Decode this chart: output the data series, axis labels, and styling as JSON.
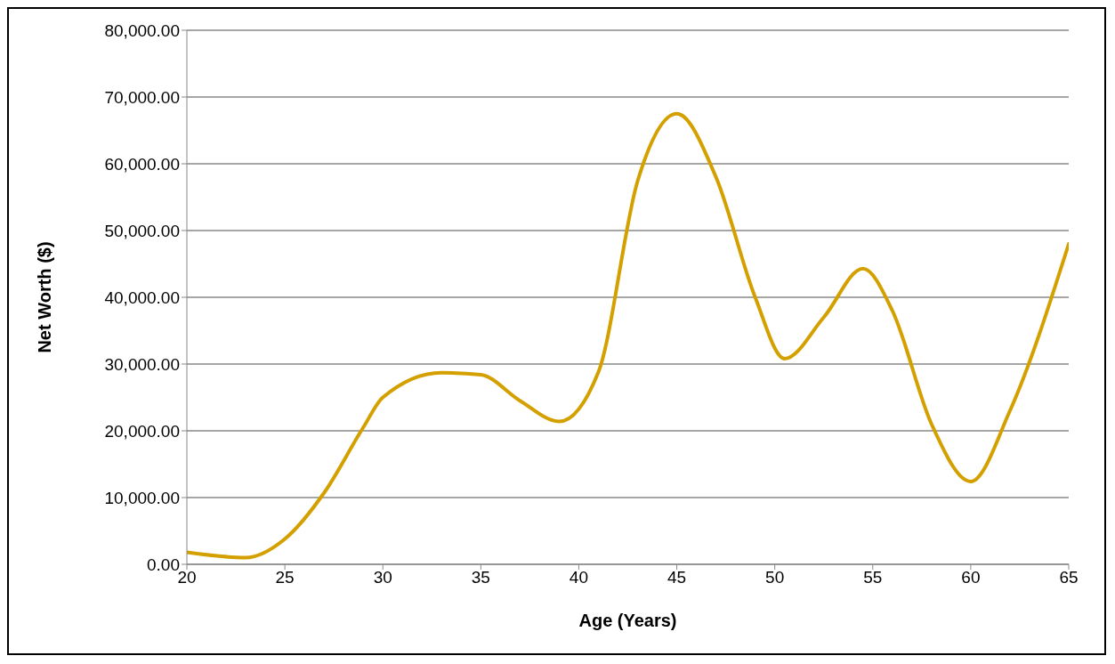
{
  "chart_data": {
    "type": "line",
    "xlabel": "Age (Years)",
    "ylabel": "Net Worth ($)",
    "x": [
      20,
      23,
      25,
      27,
      29,
      30,
      33,
      35,
      37,
      39,
      41,
      43,
      45,
      47,
      49,
      50.5,
      52.5,
      54.5,
      56,
      58,
      60,
      62,
      65
    ],
    "series": [
      {
        "color": "#d4a000",
        "values": [
          1800,
          1000,
          3800,
          10700,
          20500,
          25000,
          28700,
          28400,
          24500,
          21400,
          28800,
          57400,
          67500,
          58000,
          40000,
          30800,
          37000,
          44300,
          38000,
          21000,
          12400,
          23000,
          48000
        ]
      }
    ],
    "xlim": [
      20,
      65
    ],
    "xticks": [
      20,
      25,
      30,
      35,
      40,
      45,
      50,
      55,
      60,
      65
    ],
    "ylim": [
      0,
      80000
    ],
    "yticks": [
      {
        "value": 0,
        "label": "0.00"
      },
      {
        "value": 10000,
        "label": "10,000.00"
      },
      {
        "value": 20000,
        "label": "20,000.00"
      },
      {
        "value": 30000,
        "label": "30,000.00"
      },
      {
        "value": 40000,
        "label": "40,000.00"
      },
      {
        "value": 50000,
        "label": "50,000.00"
      },
      {
        "value": 60000,
        "label": "60,000.00"
      },
      {
        "value": 70000,
        "label": "70,000.00"
      },
      {
        "value": 80000,
        "label": "80,000.00"
      }
    ],
    "grid": "y",
    "marker": "none",
    "line_style": "solid"
  }
}
